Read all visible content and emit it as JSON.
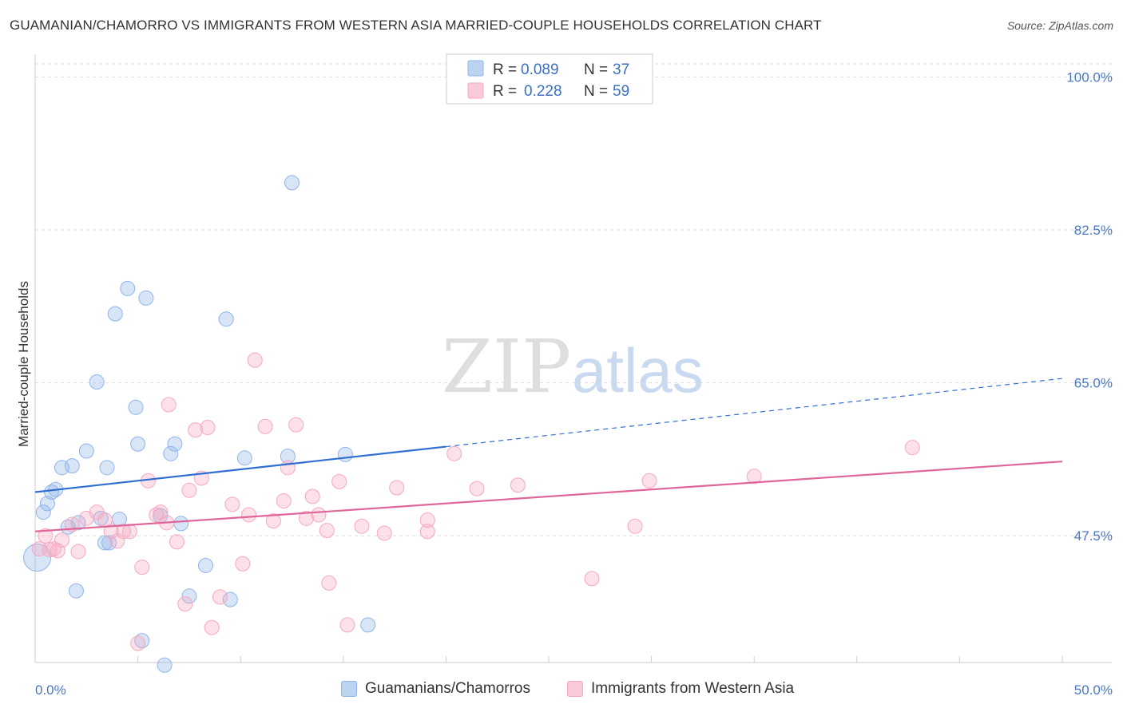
{
  "header": {
    "title": "GUAMANIAN/CHAMORRO VS IMMIGRANTS FROM WESTERN ASIA MARRIED-COUPLE HOUSEHOLDS CORRELATION CHART",
    "source": "Source: ZipAtlas.com"
  },
  "watermark": {
    "zip": "ZIP",
    "atlas": "atlas"
  },
  "chart_data": {
    "type": "scatter",
    "ylabel": "Married-couple Households",
    "xlim": [
      0,
      50
    ],
    "ylim": [
      33,
      101.5
    ],
    "y_ticks": [
      {
        "value": 47.5,
        "label": "47.5%"
      },
      {
        "value": 65.0,
        "label": "65.0%"
      },
      {
        "value": 82.5,
        "label": "82.5%"
      },
      {
        "value": 100.0,
        "label": "100.0%"
      }
    ],
    "x_tick_labels": {
      "min": "0.0%",
      "max": "50.0%"
    },
    "grid": true,
    "legend_position": "top-center",
    "series": [
      {
        "name": "Guamanians/Chamorros",
        "color": "#8fb4e8",
        "line_color": "#2f6fcf",
        "R": "0.089",
        "N": "37",
        "trend": {
          "x0": 0,
          "y0": 52.5,
          "x1": 20,
          "y1": 57.7,
          "x_ext": 50,
          "y_ext": 65.5
        },
        "points": [
          [
            0.1,
            45.0
          ],
          [
            0.4,
            50.2
          ],
          [
            0.6,
            51.2
          ],
          [
            0.8,
            52.5
          ],
          [
            1.0,
            52.8
          ],
          [
            1.3,
            55.3
          ],
          [
            1.8,
            55.5
          ],
          [
            2.5,
            57.2
          ],
          [
            3.5,
            55.3
          ],
          [
            3.9,
            72.9
          ],
          [
            4.5,
            75.8
          ],
          [
            4.9,
            62.2
          ],
          [
            5.4,
            74.7
          ],
          [
            3.0,
            65.1
          ],
          [
            4.1,
            49.4
          ],
          [
            3.4,
            46.7
          ],
          [
            5.0,
            58.0
          ],
          [
            6.6,
            56.9
          ],
          [
            6.8,
            58.0
          ],
          [
            7.1,
            48.9
          ],
          [
            8.3,
            44.1
          ],
          [
            9.3,
            72.3
          ],
          [
            10.2,
            56.4
          ],
          [
            12.3,
            56.6
          ],
          [
            12.5,
            87.9
          ],
          [
            15.1,
            56.8
          ],
          [
            3.2,
            49.5
          ],
          [
            2.1,
            49.0
          ],
          [
            1.6,
            48.5
          ],
          [
            6.1,
            49.8
          ],
          [
            7.5,
            40.6
          ],
          [
            9.5,
            40.2
          ],
          [
            3.6,
            46.7
          ],
          [
            2.0,
            41.2
          ],
          [
            5.2,
            35.5
          ],
          [
            6.3,
            32.7
          ],
          [
            16.2,
            37.3
          ]
        ]
      },
      {
        "name": "Immigrants from Western Asia",
        "color": "#f5a8c0",
        "line_color": "#e0669a",
        "R": "0.228",
        "N": "59",
        "trend": {
          "x0": 0,
          "y0": 48.0,
          "x1": 50,
          "y1": 56.0
        },
        "points": [
          [
            0.2,
            46.0
          ],
          [
            0.5,
            47.5
          ],
          [
            0.9,
            46.0
          ],
          [
            1.3,
            47.0
          ],
          [
            1.8,
            48.8
          ],
          [
            2.1,
            45.7
          ],
          [
            2.5,
            49.5
          ],
          [
            3.0,
            50.2
          ],
          [
            3.4,
            49.3
          ],
          [
            3.7,
            48.0
          ],
          [
            4.0,
            46.9
          ],
          [
            4.3,
            48.0
          ],
          [
            4.6,
            48.0
          ],
          [
            5.0,
            35.2
          ],
          [
            5.2,
            43.9
          ],
          [
            5.5,
            53.8
          ],
          [
            5.9,
            49.9
          ],
          [
            6.1,
            50.2
          ],
          [
            6.4,
            49.0
          ],
          [
            6.5,
            62.5
          ],
          [
            6.9,
            46.8
          ],
          [
            7.3,
            39.7
          ],
          [
            7.5,
            52.7
          ],
          [
            7.8,
            59.6
          ],
          [
            8.1,
            54.1
          ],
          [
            8.4,
            59.9
          ],
          [
            8.6,
            37.0
          ],
          [
            9.0,
            40.5
          ],
          [
            9.6,
            51.1
          ],
          [
            10.1,
            44.3
          ],
          [
            10.4,
            49.9
          ],
          [
            10.7,
            67.6
          ],
          [
            11.2,
            60.0
          ],
          [
            11.6,
            49.2
          ],
          [
            12.1,
            51.5
          ],
          [
            12.3,
            55.3
          ],
          [
            12.7,
            60.2
          ],
          [
            13.2,
            49.5
          ],
          [
            13.5,
            52.0
          ],
          [
            13.8,
            49.9
          ],
          [
            14.2,
            48.1
          ],
          [
            14.3,
            42.1
          ],
          [
            14.8,
            53.7
          ],
          [
            15.2,
            37.3
          ],
          [
            15.9,
            48.6
          ],
          [
            17.0,
            47.8
          ],
          [
            17.6,
            53.0
          ],
          [
            19.1,
            49.3
          ],
          [
            19.1,
            48.0
          ],
          [
            20.4,
            56.9
          ],
          [
            21.5,
            52.9
          ],
          [
            23.5,
            53.3
          ],
          [
            27.1,
            42.6
          ],
          [
            29.2,
            48.6
          ],
          [
            29.9,
            53.8
          ],
          [
            35.0,
            54.3
          ],
          [
            42.7,
            57.6
          ],
          [
            0.7,
            45.9
          ],
          [
            1.1,
            45.8
          ]
        ]
      }
    ]
  },
  "legend": {
    "r_label": "R =",
    "n_label": "N ="
  },
  "bottom_legend": {
    "item1": "Guamanians/Chamorros",
    "item2": "Immigrants from Western Asia"
  }
}
